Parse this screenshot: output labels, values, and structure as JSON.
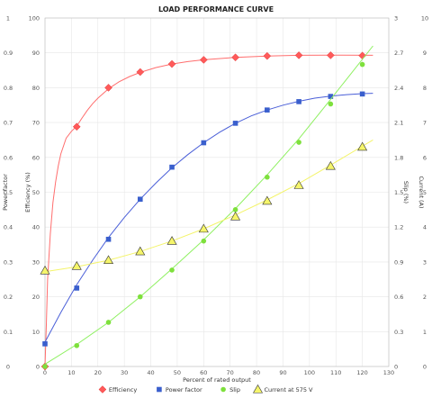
{
  "chart_data": {
    "type": "line",
    "title": "LOAD PERFORMANCE CURVE",
    "xlabel": "Percent of rated output",
    "x_ticks": [
      0,
      10,
      20,
      30,
      40,
      50,
      60,
      70,
      80,
      90,
      100,
      110,
      120,
      130
    ],
    "xlim": [
      0,
      130
    ],
    "grid": true,
    "legend_position": "bottom",
    "axes": {
      "power_factor": {
        "label": "Power factor",
        "side": "left-outer",
        "lim": [
          0,
          1
        ],
        "ticks": [
          "0",
          "0.1",
          "0.2",
          "0.3",
          "0.4",
          "0.5",
          "0.6",
          "0.7",
          "0.8",
          "0.9",
          "1"
        ]
      },
      "efficiency": {
        "label": "Efficiency (%)",
        "side": "left-inner",
        "lim": [
          0,
          100
        ],
        "ticks": [
          "0",
          "10",
          "20",
          "30",
          "40",
          "50",
          "60",
          "70",
          "80",
          "90",
          "100"
        ]
      },
      "slip": {
        "label": "Slip (%)",
        "side": "right-inner",
        "lim": [
          0,
          3
        ],
        "ticks": [
          "0",
          "0.3",
          "0.6",
          "0.9",
          "1.2",
          "1.5",
          "1.8",
          "2.1",
          "2.4",
          "2.7",
          "3"
        ]
      },
      "current": {
        "label": "Current (A)",
        "side": "right-outer",
        "lim": [
          0,
          10
        ],
        "ticks": [
          "0",
          "1",
          "2",
          "3",
          "4",
          "5",
          "6",
          "7",
          "8",
          "9",
          "10"
        ]
      }
    },
    "series": [
      {
        "name": "Efficiency",
        "axis": "efficiency",
        "color": "#ff5a5a",
        "line_color": "#ff6e6e",
        "marker": "diamond",
        "x": [
          0,
          12,
          24,
          36,
          48,
          60,
          72,
          84,
          96,
          108,
          120
        ],
        "y": [
          0,
          68.8,
          80.0,
          84.5,
          86.8,
          88.0,
          88.7,
          89.1,
          89.3,
          89.3,
          89.2
        ],
        "curve": [
          [
            0,
            0
          ],
          [
            0.5,
            12
          ],
          [
            1,
            25
          ],
          [
            2,
            38
          ],
          [
            3,
            47
          ],
          [
            4,
            53
          ],
          [
            5,
            57.5
          ],
          [
            6,
            61
          ],
          [
            8,
            65.5
          ],
          [
            10,
            67.5
          ],
          [
            12,
            69
          ],
          [
            14,
            71.3
          ],
          [
            16,
            73.5
          ],
          [
            18,
            75.4
          ],
          [
            20,
            77
          ],
          [
            24,
            79.7
          ],
          [
            28,
            81.7
          ],
          [
            32,
            83.2
          ],
          [
            36,
            84.4
          ],
          [
            42,
            85.8
          ],
          [
            48,
            86.8
          ],
          [
            54,
            87.5
          ],
          [
            60,
            88
          ],
          [
            72,
            88.7
          ],
          [
            84,
            89.1
          ],
          [
            96,
            89.3
          ],
          [
            108,
            89.35
          ],
          [
            124,
            89.3
          ]
        ]
      },
      {
        "name": "Power factor",
        "axis": "power_factor",
        "color": "#3a5fcd",
        "line_color": "#4a5fd8",
        "marker": "square",
        "x": [
          0,
          12,
          24,
          36,
          48,
          60,
          72,
          84,
          96,
          108,
          120
        ],
        "y": [
          0.065,
          0.225,
          0.365,
          0.48,
          0.572,
          0.642,
          0.698,
          0.736,
          0.76,
          0.775,
          0.782
        ],
        "curve": [
          [
            0,
            0.07
          ],
          [
            6,
            0.155
          ],
          [
            12,
            0.235
          ],
          [
            18,
            0.305
          ],
          [
            24,
            0.37
          ],
          [
            30,
            0.428
          ],
          [
            36,
            0.48
          ],
          [
            42,
            0.527
          ],
          [
            48,
            0.57
          ],
          [
            54,
            0.608
          ],
          [
            60,
            0.642
          ],
          [
            66,
            0.672
          ],
          [
            72,
            0.698
          ],
          [
            78,
            0.719
          ],
          [
            84,
            0.736
          ],
          [
            90,
            0.75
          ],
          [
            96,
            0.761
          ],
          [
            102,
            0.77
          ],
          [
            108,
            0.776
          ],
          [
            114,
            0.78
          ],
          [
            120,
            0.783
          ],
          [
            124,
            0.784
          ]
        ]
      },
      {
        "name": "Slip",
        "axis": "slip",
        "color": "#7ee03c",
        "line_color": "#8ef060",
        "marker": "circle",
        "x": [
          0,
          12,
          24,
          36,
          48,
          60,
          72,
          84,
          96,
          108,
          120
        ],
        "y": [
          0.0,
          0.18,
          0.38,
          0.6,
          0.83,
          1.08,
          1.35,
          1.63,
          1.93,
          2.26,
          2.6
        ],
        "curve": [
          [
            0,
            0.02
          ],
          [
            12,
            0.19
          ],
          [
            24,
            0.38
          ],
          [
            36,
            0.6
          ],
          [
            48,
            0.84
          ],
          [
            60,
            1.09
          ],
          [
            72,
            1.36
          ],
          [
            84,
            1.65
          ],
          [
            96,
            1.96
          ],
          [
            108,
            2.3
          ],
          [
            124,
            2.76
          ]
        ]
      },
      {
        "name": "Current at 575 V",
        "axis": "current",
        "color": "#f5f56a",
        "line_color": "#f4f46a",
        "marker": "triangle",
        "x": [
          0,
          12,
          24,
          36,
          48,
          60,
          72,
          84,
          96,
          108,
          120
        ],
        "y": [
          2.75,
          2.88,
          3.05,
          3.3,
          3.6,
          3.95,
          4.3,
          4.75,
          5.2,
          5.75,
          6.3
        ],
        "curve": [
          [
            0,
            2.72
          ],
          [
            12,
            2.86
          ],
          [
            24,
            3.05
          ],
          [
            36,
            3.3
          ],
          [
            48,
            3.6
          ],
          [
            60,
            3.95
          ],
          [
            72,
            4.35
          ],
          [
            84,
            4.78
          ],
          [
            96,
            5.25
          ],
          [
            108,
            5.78
          ],
          [
            124,
            6.5
          ]
        ]
      }
    ]
  }
}
